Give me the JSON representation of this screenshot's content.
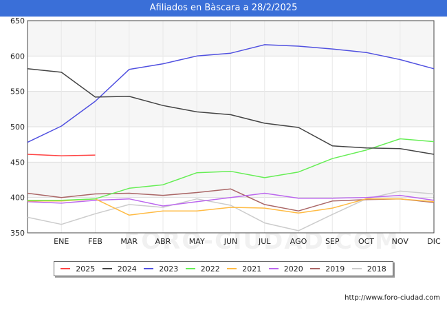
{
  "title": "Afiliados en Bàscara a 28/2/2025",
  "footer": "http://www.foro-ciudad.com",
  "watermark": "FORO-CIUDAD.COM",
  "chart_data": {
    "type": "line",
    "title": "Afiliados en Bàscara a 28/2/2025",
    "x_labels": [
      "",
      "ENE",
      "FEB",
      "MAR",
      "ABR",
      "MAY",
      "JUN",
      "JUL",
      "AGO",
      "SEP",
      "OCT",
      "NOV",
      "DIC"
    ],
    "ylim": [
      350,
      650
    ],
    "y_ticks": [
      350,
      400,
      450,
      500,
      550,
      600,
      650
    ],
    "grid": true,
    "legend_position": "bottom",
    "series": [
      {
        "name": "2025",
        "color": "#ff4444",
        "values": [
          461,
          459,
          460
        ]
      },
      {
        "name": "2024",
        "color": "#444444",
        "values": [
          582,
          577,
          542,
          543,
          530,
          521,
          517,
          505,
          499,
          473,
          470,
          469,
          461
        ]
      },
      {
        "name": "2023",
        "color": "#5050e0",
        "values": [
          478,
          501,
          536,
          581,
          589,
          600,
          604,
          616,
          614,
          610,
          605,
          595,
          582
        ]
      },
      {
        "name": "2022",
        "color": "#66ee55",
        "values": [
          396,
          396,
          398,
          413,
          418,
          435,
          437,
          428,
          436,
          455,
          467,
          483,
          479
        ]
      },
      {
        "name": "2021",
        "color": "#ffbb44",
        "values": [
          395,
          395,
          398,
          375,
          381,
          381,
          386,
          385,
          378,
          385,
          398,
          398,
          394
        ]
      },
      {
        "name": "2020",
        "color": "#bb66ee",
        "values": [
          394,
          392,
          396,
          398,
          388,
          394,
          400,
          406,
          399,
          399,
          400,
          403,
          396
        ]
      },
      {
        "name": "2019",
        "color": "#aa6666",
        "values": [
          406,
          400,
          405,
          406,
          403,
          407,
          412,
          390,
          381,
          395,
          397,
          398,
          393
        ]
      },
      {
        "name": "2018",
        "color": "#cccccc",
        "values": [
          372,
          362,
          377,
          390,
          386,
          398,
          389,
          364,
          353,
          376,
          398,
          409,
          405
        ]
      }
    ]
  }
}
